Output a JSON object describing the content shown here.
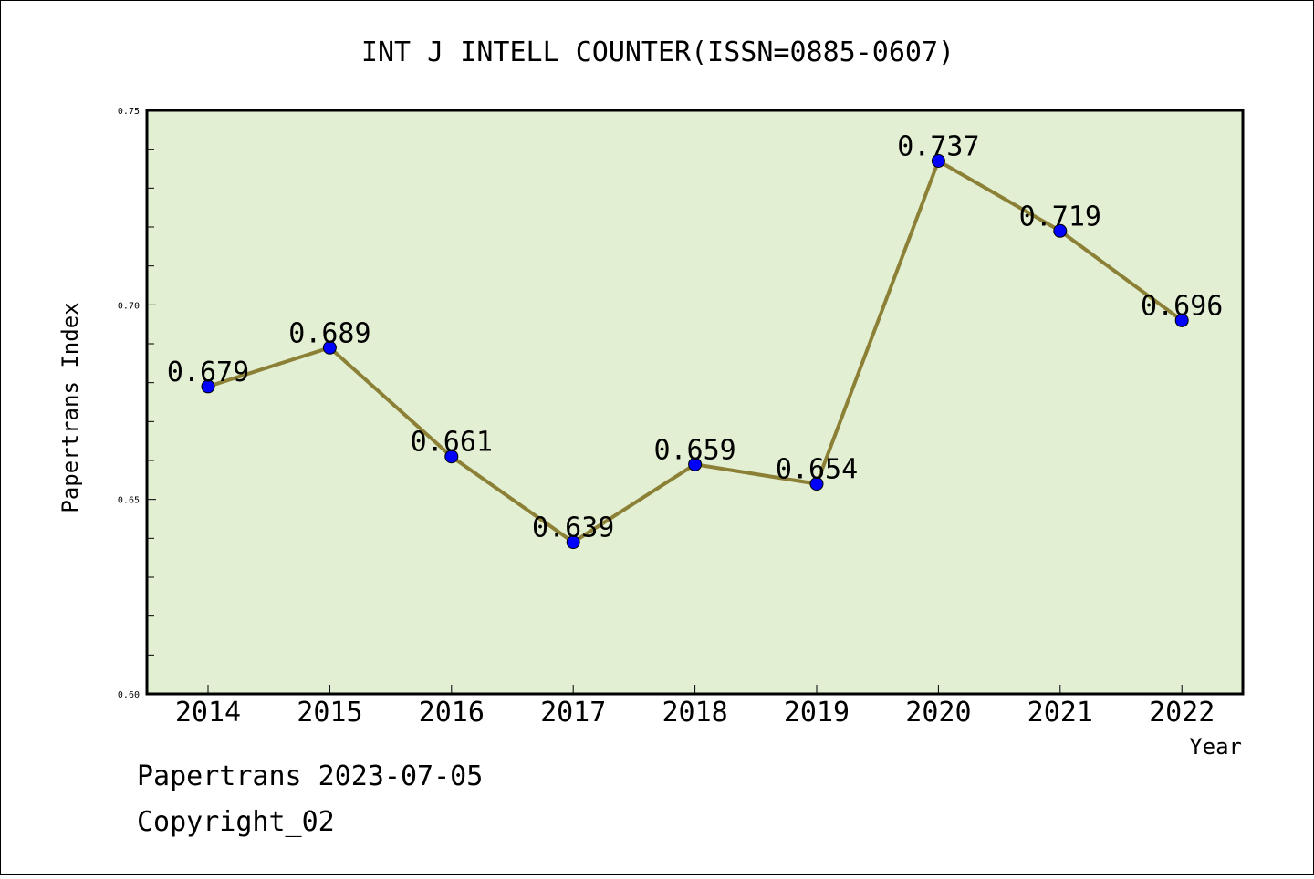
{
  "chart_data": {
    "type": "line",
    "title": "INT J INTELL COUNTER(ISSN=0885-0607)",
    "xlabel": "Year",
    "ylabel": "Papertrans Index",
    "categories": [
      "2014",
      "2015",
      "2016",
      "2017",
      "2018",
      "2019",
      "2020",
      "2021",
      "2022"
    ],
    "series": [
      {
        "values": [
          0.679,
          0.689,
          0.661,
          0.639,
          0.659,
          0.654,
          0.737,
          0.719,
          0.696
        ],
        "data_labels": [
          "0.679",
          "0.689",
          "0.661",
          "0.639",
          "0.659",
          "0.654",
          "0.737",
          "0.719",
          "0.696"
        ]
      }
    ],
    "ylim": [
      0.6,
      0.75
    ],
    "yticks": [
      "0.60",
      "0.65",
      "0.70",
      "0.75"
    ],
    "grid": false,
    "colors": {
      "plot_background": "#e2efd3",
      "line": "#8b8035",
      "marker": "#0000ff"
    }
  },
  "footer": {
    "line1": "Papertrans 2023-07-05",
    "line2": "Copyright_02"
  }
}
